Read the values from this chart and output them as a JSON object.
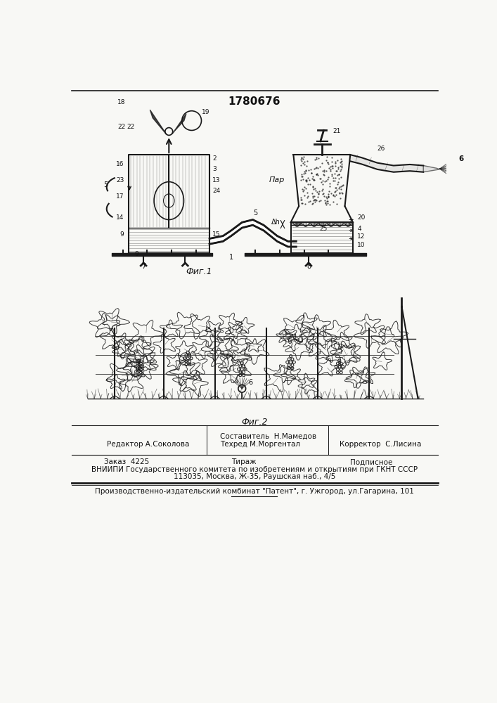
{
  "patent_number": "1780676",
  "fig1_caption": "Фиг.1",
  "fig2_caption": "Фиг.2",
  "editor_line": "Редактор А.Соколова",
  "composer_label": "Составитель  Н.Мамедов",
  "techred_label": "Техред М.Моргентал",
  "corrector_label": "Корректор  С.Лисина",
  "order_label": "Заказ  4225",
  "tirazh_label": "Тираж",
  "podpisnoe_label": "Подписное",
  "vniip_line": "ВНИИПИ Государственного комитета по изобретениям и открытиям при ГКНТ СССР",
  "address_line": "113035, Москва, Ж-35, Раушская наб., 4/5",
  "publisher_line": "Производственно-издательский комбинат \"Патент\", г. Ужгород, ул.Гагарина, 101",
  "bg_color": "#f8f8f5",
  "line_color": "#1a1a1a",
  "text_color": "#111111"
}
